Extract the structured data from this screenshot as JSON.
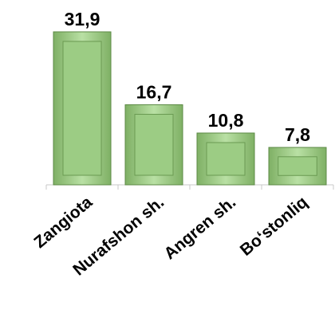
{
  "chart_data": {
    "type": "bar",
    "categories": [
      "Zangiota",
      "Nurafshon sh.",
      "Angren sh.",
      "Boʻstonliq"
    ],
    "values": [
      31.9,
      16.7,
      10.8,
      7.8
    ],
    "value_labels": [
      "31,9",
      "16,7",
      "10,8",
      "7,8"
    ],
    "color": "#9ccc84"
  }
}
